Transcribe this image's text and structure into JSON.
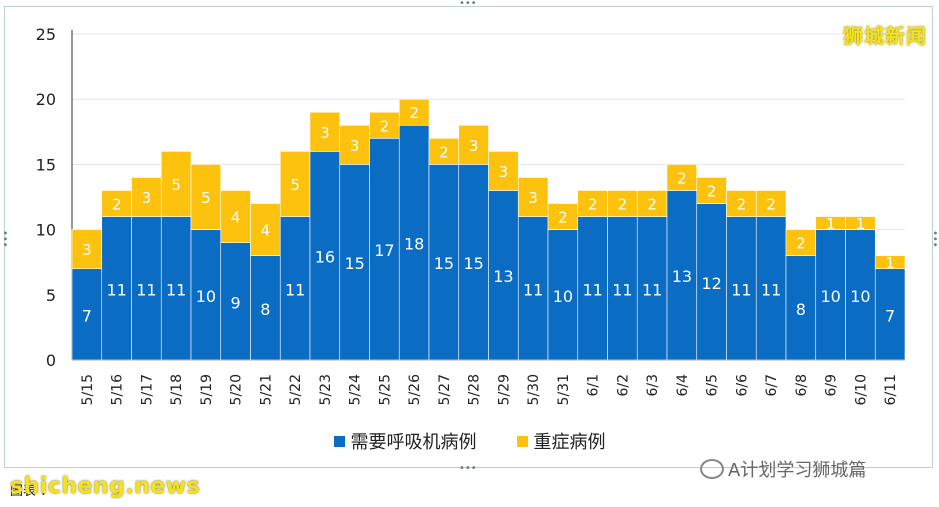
{
  "brand_label": "狮城新闻",
  "watermark_text": "A计划学习狮城篇",
  "footer": {
    "text": "图表 ：",
    "site": "shicheng.news"
  },
  "colors": {
    "ventilator": "#0a6cc2",
    "icu": "#fdc20e",
    "grid": "#e6e6e6",
    "axis": "#333333"
  },
  "chart_data": {
    "type": "bar",
    "stacked": true,
    "categories": [
      "5/15",
      "5/16",
      "5/17",
      "5/18",
      "5/19",
      "5/20",
      "5/21",
      "5/22",
      "5/23",
      "5/24",
      "5/25",
      "5/26",
      "5/27",
      "5/28",
      "5/29",
      "5/30",
      "5/31",
      "6/1",
      "6/2",
      "6/3",
      "6/4",
      "6/5",
      "6/6",
      "6/7",
      "6/8",
      "6/9",
      "6/10",
      "6/11"
    ],
    "series": [
      {
        "name": "需要呼吸机病例",
        "color": "#0a6cc2",
        "values": [
          7,
          11,
          11,
          11,
          10,
          9,
          8,
          11,
          16,
          15,
          17,
          18,
          15,
          15,
          13,
          11,
          10,
          11,
          11,
          11,
          13,
          12,
          11,
          11,
          8,
          10,
          10,
          7
        ]
      },
      {
        "name": "重症病例",
        "color": "#fdc20e",
        "values": [
          3,
          2,
          3,
          5,
          5,
          4,
          4,
          5,
          3,
          3,
          2,
          2,
          2,
          3,
          3,
          3,
          2,
          2,
          2,
          2,
          2,
          2,
          2,
          2,
          2,
          1,
          1,
          1
        ]
      }
    ],
    "ylim": [
      0,
      25
    ],
    "yticks": [
      0,
      5,
      10,
      15,
      20,
      25
    ],
    "grid": true,
    "legend_position": "bottom"
  }
}
